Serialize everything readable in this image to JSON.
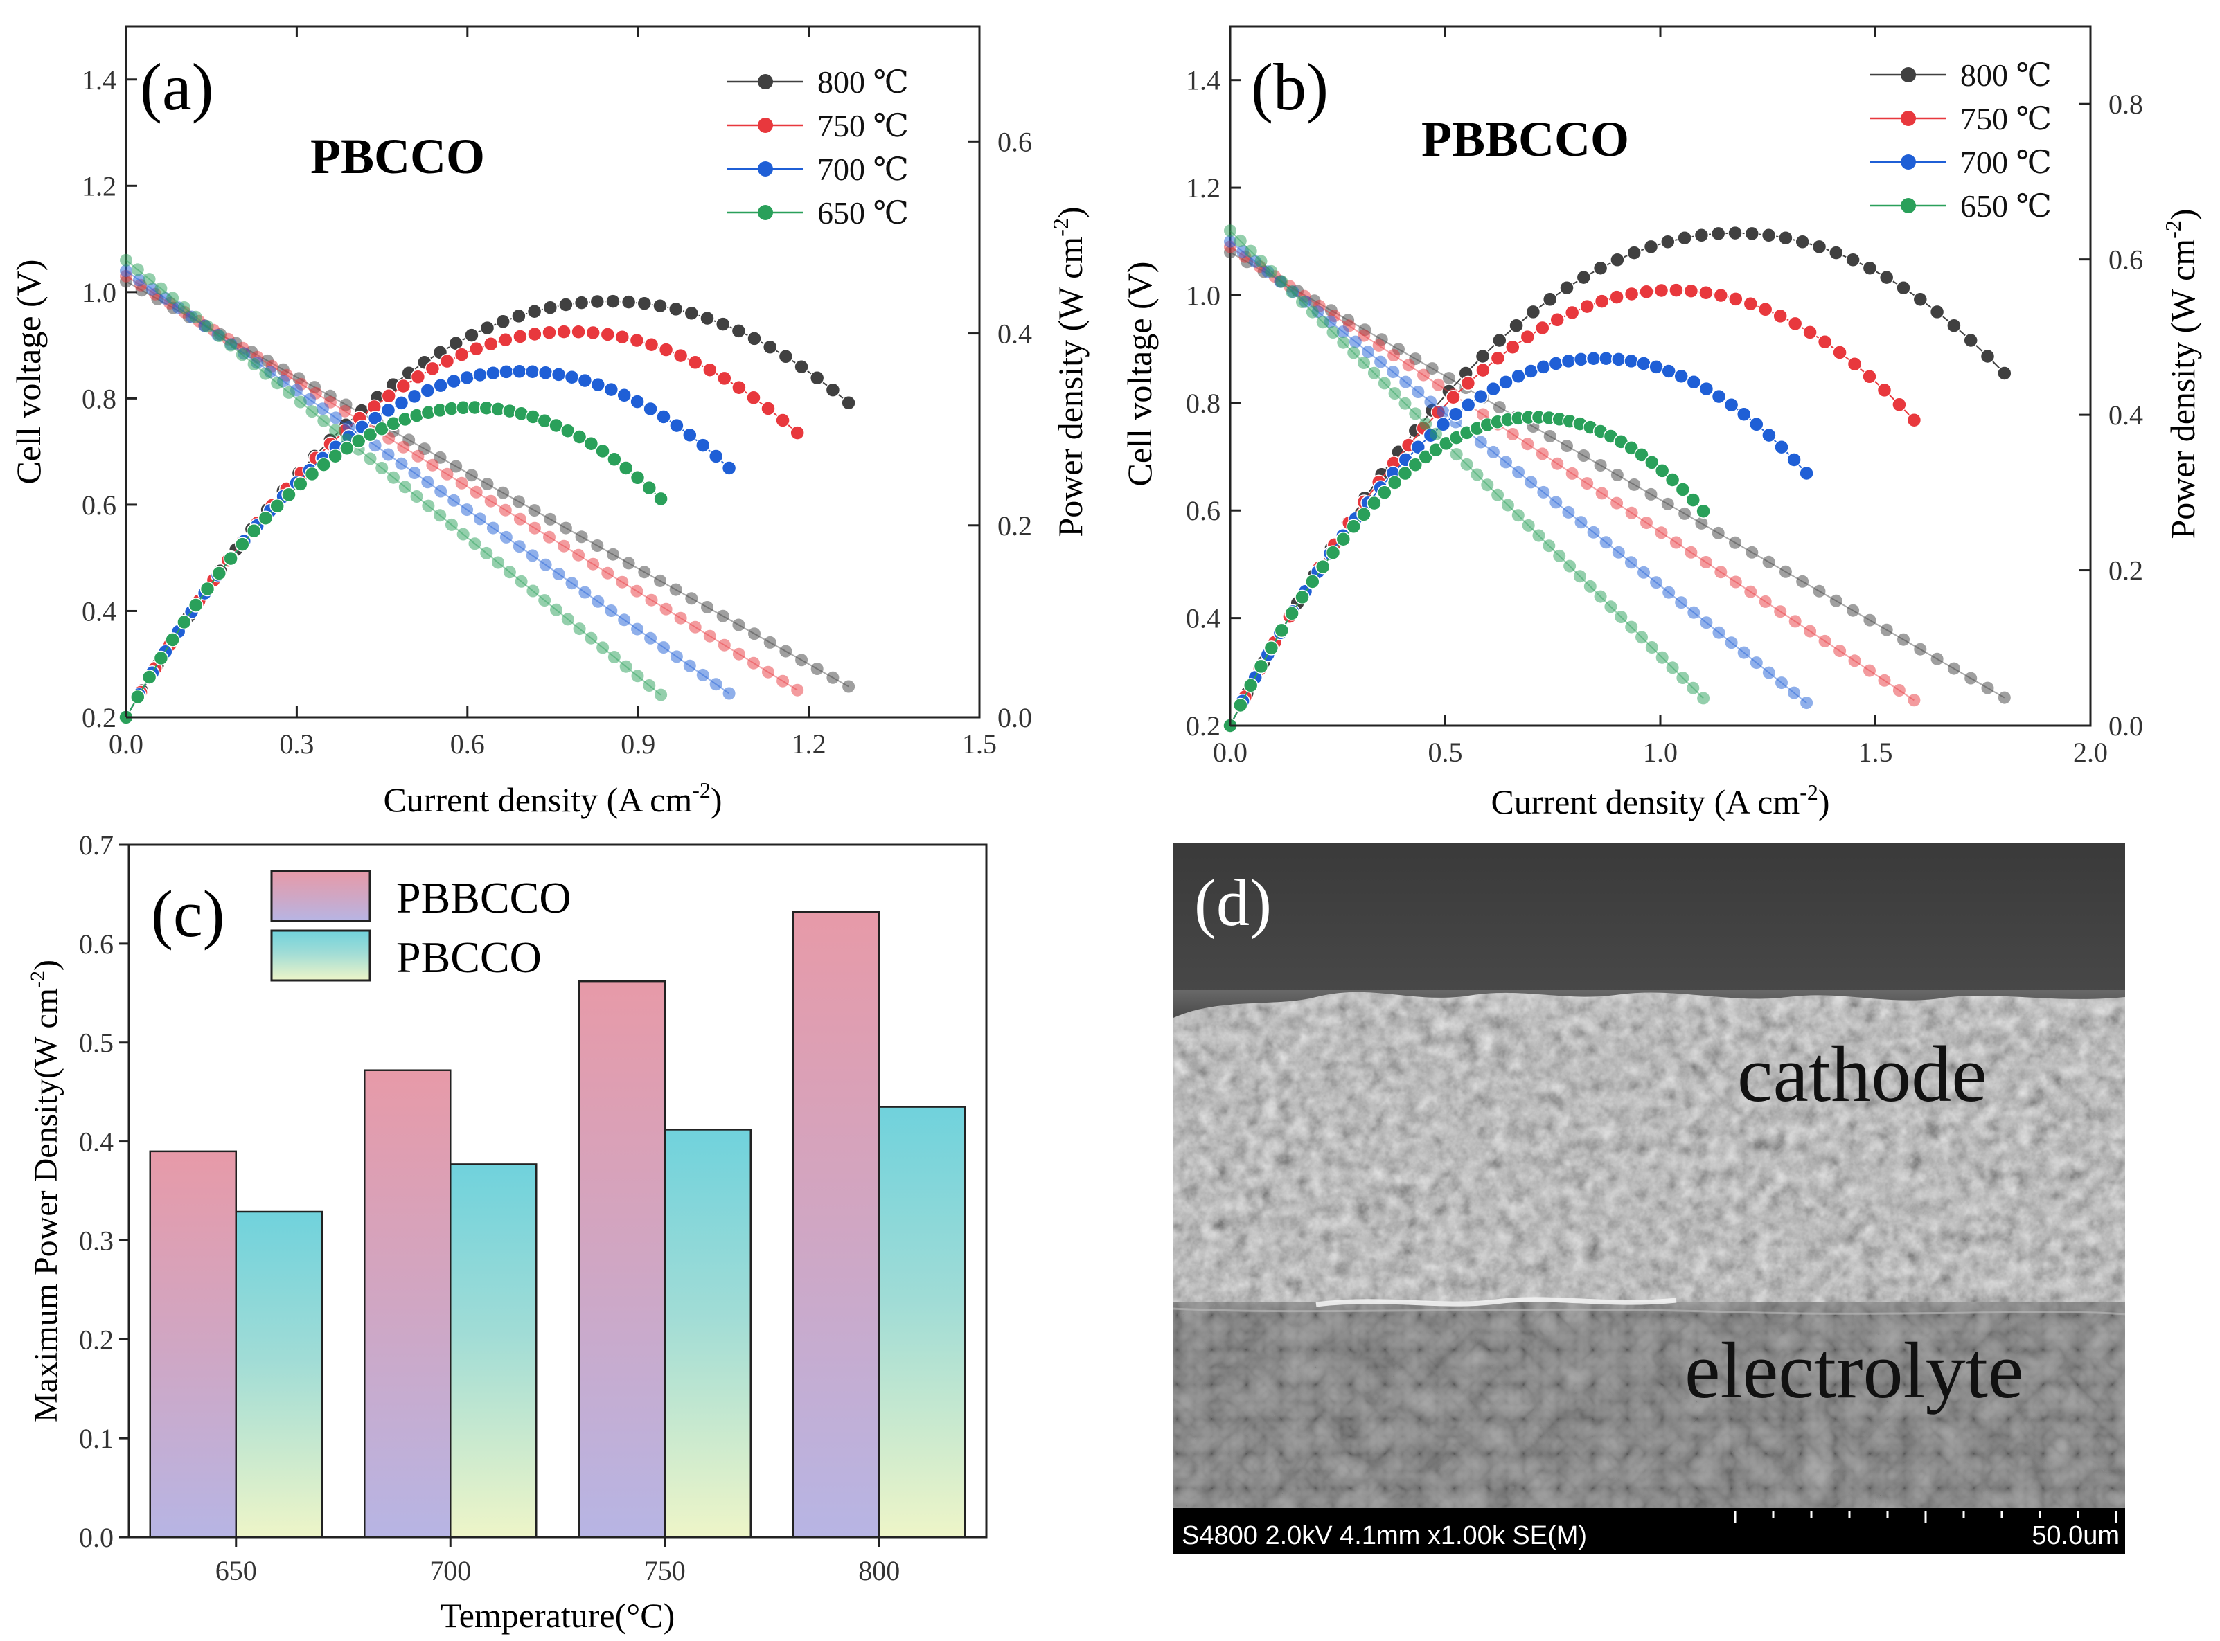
{
  "chart_data": [
    {
      "id": "a",
      "type": "line",
      "panel_label": "(a)",
      "title": "PBCCO",
      "xlabel": "Current density (A cm",
      "xlabel_sup": "-2",
      "xlabel_end": ")",
      "ylabel": "Cell voltage (V)",
      "y2label": "Power density (W cm",
      "y2label_sup": "-2",
      "y2label_end": ")",
      "xlim": [
        0,
        1.5
      ],
      "ylim": [
        0.2,
        1.5
      ],
      "y2lim": [
        0,
        0.72
      ],
      "xticks": [
        "0.0",
        "0.3",
        "0.6",
        "0.9",
        "1.2",
        "1.5"
      ],
      "yticks": [
        "0.2",
        "0.4",
        "0.6",
        "0.8",
        "1.0",
        "1.2",
        "1.4"
      ],
      "y2ticks": [
        "0.0",
        "0.2",
        "0.4",
        "0.6"
      ],
      "legend_position": "top-right",
      "series": [
        {
          "name": "800 ℃",
          "color": "#404040",
          "ocv": 1.02,
          "vslope": 0.6,
          "imax": 1.27
        },
        {
          "name": "750 ℃",
          "color": "#e8383d",
          "ocv": 1.03,
          "vslope": 0.66,
          "imax": 1.18
        },
        {
          "name": "700 ℃",
          "color": "#1f5fd6",
          "ocv": 1.04,
          "vslope": 0.75,
          "imax": 1.06
        },
        {
          "name": "650 ℃",
          "color": "#2aa05a",
          "ocv": 1.06,
          "vslope": 0.87,
          "imax": 0.94
        }
      ]
    },
    {
      "id": "b",
      "type": "line",
      "panel_label": "(b)",
      "title": "PBBCCO",
      "xlabel": "Current density (A cm",
      "xlabel_sup": "-2",
      "xlabel_end": ")",
      "ylabel": "Cell voltage (V)",
      "y2label": "Power density (W cm",
      "y2label_sup": "-2",
      "y2label_end": ")",
      "xlim": [
        0,
        2.0
      ],
      "ylim": [
        0.2,
        1.5
      ],
      "y2lim": [
        0,
        0.9
      ],
      "xticks": [
        "0.0",
        "0.5",
        "1.0",
        "1.5",
        "2.0"
      ],
      "yticks": [
        "0.2",
        "0.4",
        "0.6",
        "0.8",
        "1.0",
        "1.2",
        "1.4"
      ],
      "y2ticks": [
        "0.0",
        "0.2",
        "0.4",
        "0.6",
        "0.8"
      ],
      "legend_position": "top-right",
      "series": [
        {
          "name": "800 ℃",
          "color": "#404040",
          "ocv": 1.08,
          "vslope": 0.46,
          "imax": 1.8
        },
        {
          "name": "750 ℃",
          "color": "#e8383d",
          "ocv": 1.09,
          "vslope": 0.53,
          "imax": 1.59
        },
        {
          "name": "700 ℃",
          "color": "#1f5fd6",
          "ocv": 1.1,
          "vslope": 0.64,
          "imax": 1.34
        },
        {
          "name": "650 ℃",
          "color": "#2aa05a",
          "ocv": 1.12,
          "vslope": 0.79,
          "imax": 1.1
        }
      ]
    },
    {
      "id": "c",
      "type": "bar",
      "panel_label": "(c)",
      "xlabel": "Temperature(°C)",
      "ylabel": "Maximum Power Density(W cm",
      "ylabel_sup": "-2",
      "ylabel_end": ")",
      "ylim": [
        0,
        0.7
      ],
      "yticks": [
        "0.0",
        "0.1",
        "0.2",
        "0.3",
        "0.4",
        "0.5",
        "0.6",
        "0.7"
      ],
      "categories": [
        "650",
        "700",
        "750",
        "800"
      ],
      "legend_position": "top-left",
      "series": [
        {
          "name": "PBBCCO",
          "values": [
            0.39,
            0.472,
            0.562,
            0.632
          ]
        },
        {
          "name": "PBCCO",
          "values": [
            0.329,
            0.377,
            0.412,
            0.435
          ]
        }
      ]
    }
  ],
  "panel_d": {
    "panel_label": "(d)",
    "label_cathode": "cathode",
    "label_electrolyte": "electrolyte",
    "caption_left": "S4800 2.0kV 4.1mm x1.00k SE(M)",
    "caption_right": "50.0um"
  }
}
